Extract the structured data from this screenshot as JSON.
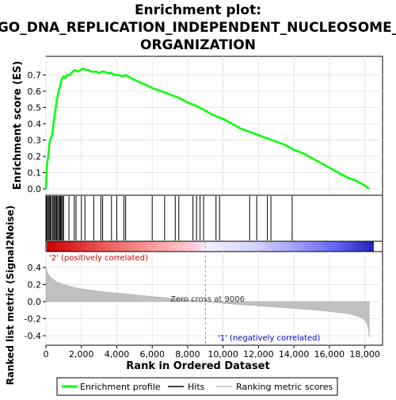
{
  "chart_data": {
    "type": "line",
    "title_line1": "Enrichment plot:",
    "title_line2": "GO_DNA_REPLICATION_INDEPENDENT_NUCLEOSOME_",
    "title_line3": "ORGANIZATION",
    "es_panel": {
      "ylabel": "Enrichment score (ES)",
      "ylim": [
        0,
        0.77
      ],
      "yticks": [
        "0.0",
        "0.1",
        "0.2",
        "0.3",
        "0.4",
        "0.5",
        "0.6",
        "0.7"
      ],
      "ytick_values": [
        0.0,
        0.1,
        0.2,
        0.3,
        0.4,
        0.5,
        0.6,
        0.7
      ],
      "x": [
        0,
        60,
        130,
        200,
        260,
        330,
        400,
        450,
        500,
        560,
        620,
        680,
        740,
        800,
        860,
        920,
        1000,
        1100,
        1200,
        1350,
        1500,
        1650,
        1800,
        1950,
        2100,
        2250,
        2400,
        2550,
        2700,
        2850,
        3000,
        3150,
        3300,
        3500,
        3700,
        3900,
        4100,
        4300,
        4500,
        4800,
        5200,
        5600,
        6000,
        6500,
        7000,
        7500,
        8000,
        8500,
        9000,
        9500,
        10000,
        10500,
        11000,
        11500,
        12000,
        12500,
        13000,
        13500,
        14000,
        14500,
        15000,
        15500,
        16000,
        16500,
        17000,
        17500,
        18000,
        18250
      ],
      "values": [
        0.0,
        0.15,
        0.2,
        0.28,
        0.31,
        0.32,
        0.37,
        0.42,
        0.46,
        0.5,
        0.55,
        0.58,
        0.61,
        0.63,
        0.66,
        0.68,
        0.69,
        0.68,
        0.7,
        0.7,
        0.72,
        0.73,
        0.72,
        0.73,
        0.74,
        0.73,
        0.73,
        0.72,
        0.72,
        0.72,
        0.71,
        0.72,
        0.72,
        0.71,
        0.71,
        0.7,
        0.7,
        0.69,
        0.7,
        0.68,
        0.66,
        0.64,
        0.62,
        0.6,
        0.58,
        0.56,
        0.53,
        0.51,
        0.48,
        0.45,
        0.43,
        0.4,
        0.37,
        0.35,
        0.33,
        0.31,
        0.29,
        0.27,
        0.24,
        0.22,
        0.19,
        0.16,
        0.13,
        0.1,
        0.07,
        0.05,
        0.02,
        0.0
      ]
    },
    "hits": [
      30,
      80,
      140,
      190,
      250,
      300,
      380,
      440,
      490,
      550,
      600,
      660,
      720,
      780,
      830,
      880,
      940,
      1000,
      1300,
      1600,
      1700,
      2000,
      2200,
      2700,
      3100,
      3200,
      3700,
      4000,
      4400,
      4500,
      6000,
      6700,
      7300,
      7500,
      8300,
      8500,
      8700,
      8900,
      9600,
      9800,
      11500,
      11900,
      12500,
      12700,
      13900
    ],
    "metric_panel": {
      "ylabel": "Ranked list metric (Signal2Noise)",
      "ylim": [
        -0.45,
        0.45
      ],
      "yticks": [
        "0.4",
        "0.2",
        "0.0",
        "-0.2",
        "-0.4"
      ],
      "ytick_values": [
        0.4,
        0.2,
        0.0,
        -0.2,
        -0.4
      ],
      "x": [
        0,
        100,
        300,
        600,
        1000,
        1500,
        2000,
        3000,
        4000,
        5000,
        6000,
        7000,
        8000,
        9006,
        10000,
        11000,
        12000,
        13000,
        14000,
        15000,
        16000,
        17000,
        17500,
        17800,
        18000,
        18100,
        18200,
        18250
      ],
      "values": [
        0.4,
        0.33,
        0.28,
        0.23,
        0.2,
        0.17,
        0.15,
        0.12,
        0.1,
        0.08,
        0.06,
        0.04,
        0.02,
        0.0,
        -0.02,
        -0.035,
        -0.05,
        -0.065,
        -0.08,
        -0.095,
        -0.115,
        -0.14,
        -0.165,
        -0.19,
        -0.22,
        -0.25,
        -0.32,
        -0.42
      ],
      "zero_cross_label": "Zero cross at 9006",
      "zero_cross": 9006,
      "pos_label": "'2' (positively correlated)",
      "neg_label": "'1' (negatively correlated)"
    },
    "xlabel": "Rank in Ordered Dataset",
    "xlim": [
      0,
      19000
    ],
    "xticks": [
      "0",
      "2,000",
      "4,000",
      "6,000",
      "8,000",
      "10,000",
      "12,000",
      "14,000",
      "16,000",
      "18,000"
    ],
    "xtick_values": [
      0,
      2000,
      4000,
      6000,
      8000,
      10000,
      12000,
      14000,
      16000,
      18000
    ],
    "legend": {
      "placement": "bottom",
      "items": [
        {
          "label": "Enrichment profile",
          "color": "#00ff00"
        },
        {
          "label": "Hits",
          "color": "#000000"
        },
        {
          "label": "Ranking metric scores",
          "color": "#c0c0c0"
        }
      ]
    },
    "colors": {
      "es_line": "#00ff00",
      "hits": "#000000",
      "metric_fill": "#c0c0c0",
      "pos_text": "#cc0000",
      "neg_text": "#0000cc"
    }
  }
}
